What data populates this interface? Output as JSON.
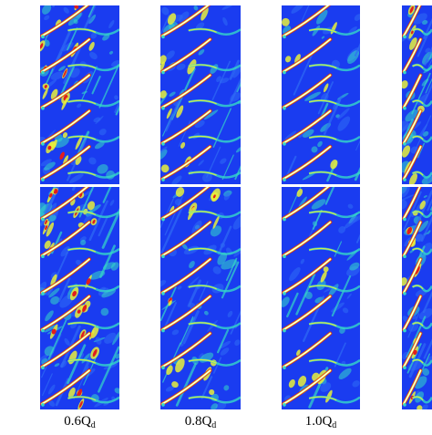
{
  "figure": {
    "columns": [
      {
        "id": "c1",
        "label_main": "0.6Q",
        "label_sub": "d"
      },
      {
        "id": "c2",
        "label_main": "0.8Q",
        "label_sub": "d"
      },
      {
        "id": "c3",
        "label_main": "1.0Q",
        "label_sub": "d"
      },
      {
        "id": "c4",
        "label_main": "",
        "label_sub": ""
      }
    ],
    "colormap": {
      "background": "#1a3cf0",
      "low": "#2f6cf5",
      "mid": "#35d8c8",
      "high": "#e9f03a",
      "peak": "#e11d1d",
      "blade": "#ffffff"
    }
  }
}
